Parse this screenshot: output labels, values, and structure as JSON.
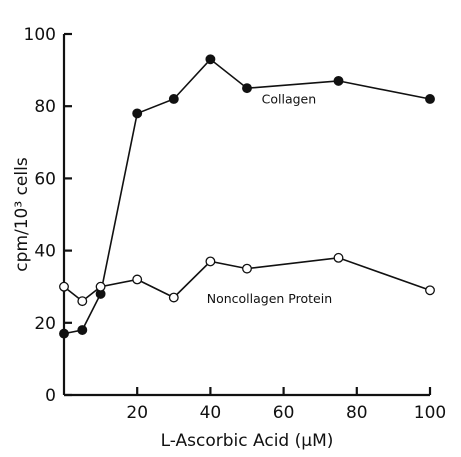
{
  "chart_data": {
    "type": "line",
    "xlabel": "L-Ascorbic Acid (μM)",
    "ylabel": "cpm/10³ cells",
    "xlim": [
      0,
      100
    ],
    "ylim": [
      0,
      100
    ],
    "xticks": [
      20,
      40,
      60,
      80,
      100
    ],
    "yticks": [
      0,
      20,
      40,
      60,
      80,
      100
    ],
    "grid": false,
    "series": [
      {
        "name": "Collagen",
        "marker": "filled-circle",
        "x": [
          0,
          5,
          10,
          20,
          30,
          40,
          50,
          75,
          100
        ],
        "y": [
          17,
          18,
          28,
          78,
          82,
          93,
          85,
          87,
          82
        ]
      },
      {
        "name": "Noncollagen Protein",
        "marker": "open-circle",
        "x": [
          0,
          5,
          10,
          20,
          30,
          40,
          50,
          75,
          100
        ],
        "y": [
          30,
          26,
          30,
          32,
          27,
          37,
          35,
          38,
          29
        ]
      }
    ]
  }
}
